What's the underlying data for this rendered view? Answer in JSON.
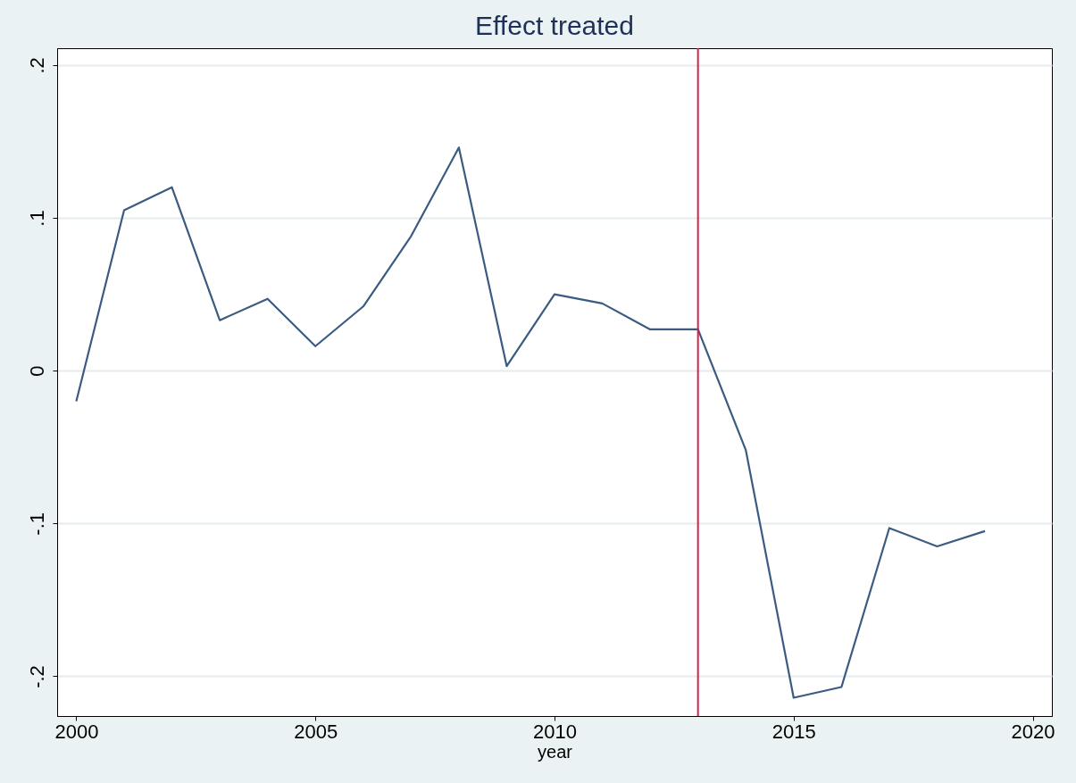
{
  "chart_data": {
    "type": "line",
    "title": "Effect treated",
    "xlabel": "year",
    "x": [
      2000,
      2001,
      2002,
      2003,
      2004,
      2005,
      2006,
      2007,
      2008,
      2009,
      2010,
      2011,
      2012,
      2013,
      2014,
      2015,
      2016,
      2017,
      2018,
      2019
    ],
    "series": [
      {
        "color": "#3b5b82",
        "values": [
          -0.02,
          0.105,
          0.12,
          0.033,
          0.047,
          0.016,
          0.042,
          0.088,
          0.146,
          0.003,
          0.05,
          0.044,
          0.027,
          0.027,
          -0.052,
          -0.214,
          -0.207,
          -0.103,
          -0.115,
          -0.105
        ]
      }
    ],
    "xlim": [
      1999.6,
      2020.4
    ],
    "xticks": [
      2000,
      2005,
      2010,
      2015,
      2020
    ],
    "ylim": [
      -0.226,
      0.211
    ],
    "yticks": [
      {
        "value": -0.2,
        "label": "-.2"
      },
      {
        "value": -0.1,
        "label": "-.1"
      },
      0,
      {
        "value": 0.1,
        "label": ".1"
      },
      {
        "value": 0.2,
        "label": ".2"
      }
    ],
    "ref_lines": [
      {
        "axis": "x",
        "value": 2013,
        "color": "#d2234a"
      }
    ],
    "grid": "y",
    "marker": "none",
    "line_style": "solid"
  }
}
